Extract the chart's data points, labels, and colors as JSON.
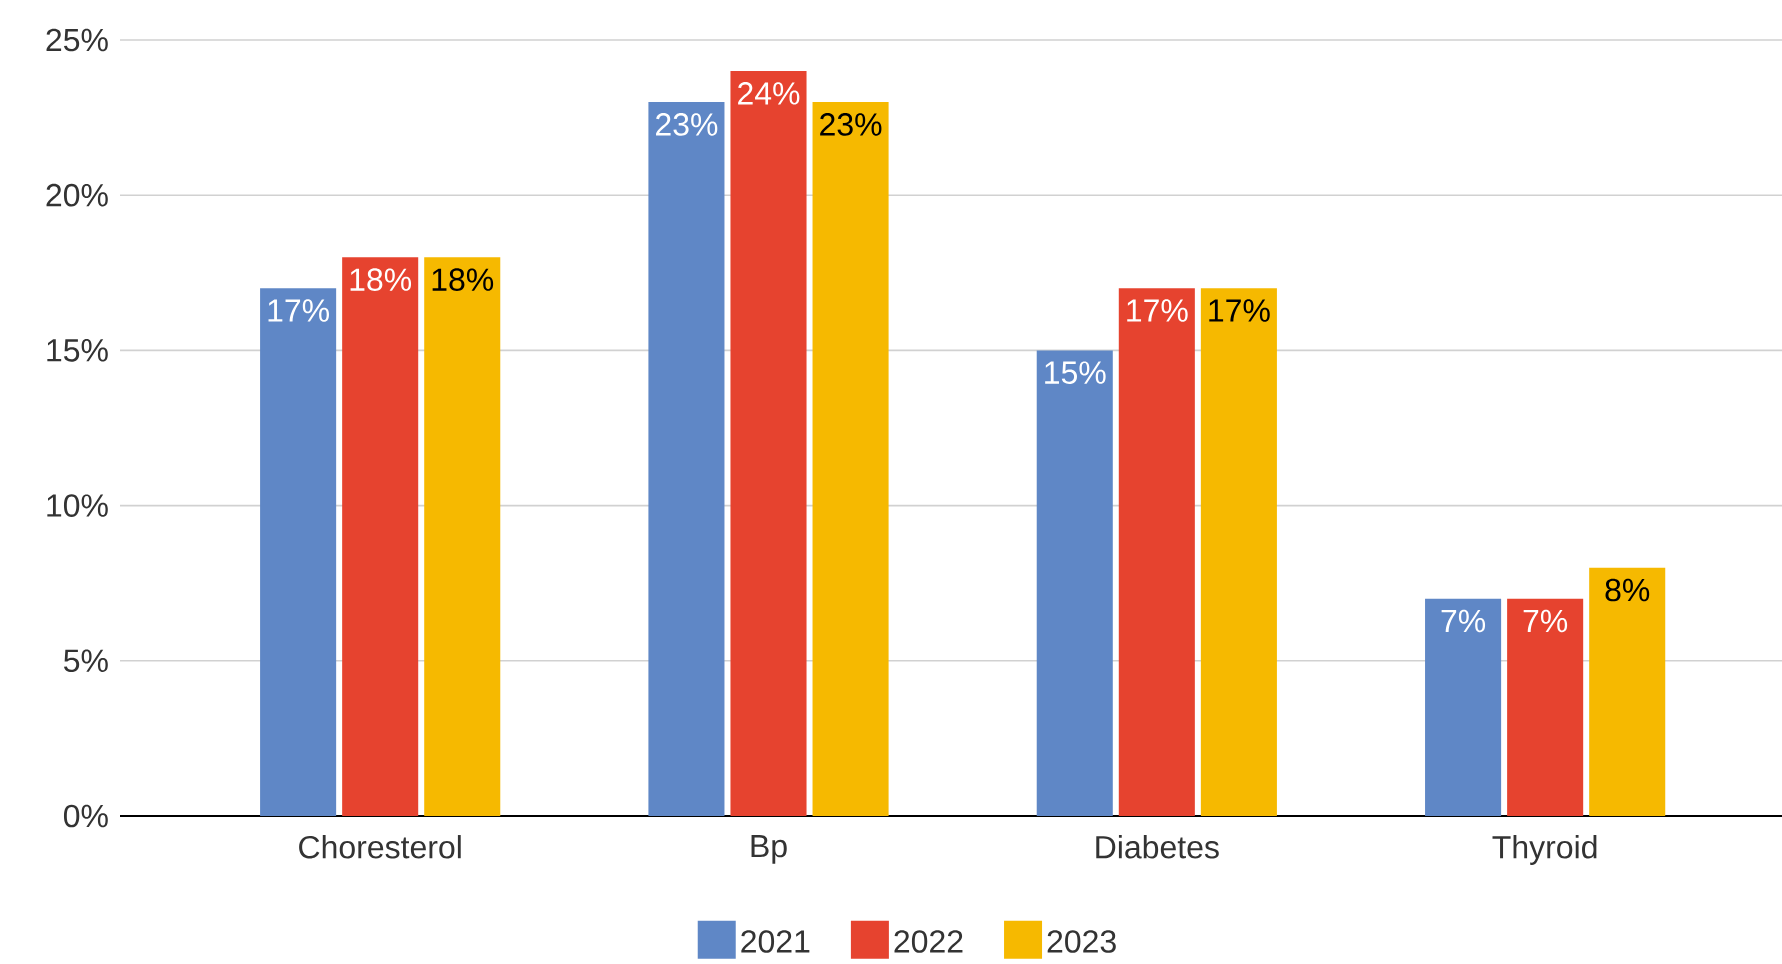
{
  "chart_data": {
    "type": "bar",
    "categories": [
      "Choresterol",
      "Bp",
      "Diabetes",
      "Thyroid"
    ],
    "series": [
      {
        "name": "2021",
        "color": "#5f87c6",
        "values": [
          17,
          23,
          15,
          7
        ],
        "value_labels": [
          "17%",
          "23%",
          "15%",
          "7%"
        ]
      },
      {
        "name": "2022",
        "color": "#e6432f",
        "values": [
          18,
          24,
          17,
          7
        ],
        "value_labels": [
          "18%",
          "24%",
          "17%",
          "7%"
        ]
      },
      {
        "name": "2023",
        "color": "#f6b900",
        "values": [
          18,
          23,
          17,
          8
        ],
        "value_labels": [
          "18%",
          "23%",
          "17%",
          "8%"
        ]
      }
    ],
    "ylim": [
      0,
      25
    ],
    "yticks": [
      {
        "value": 0,
        "label": "0%"
      },
      {
        "value": 5,
        "label": "5%"
      },
      {
        "value": 10,
        "label": "10%"
      },
      {
        "value": 15,
        "label": "15%"
      },
      {
        "value": 20,
        "label": "20%"
      },
      {
        "value": 25,
        "label": "25%"
      }
    ],
    "grid": "y",
    "legend": "bottom"
  }
}
